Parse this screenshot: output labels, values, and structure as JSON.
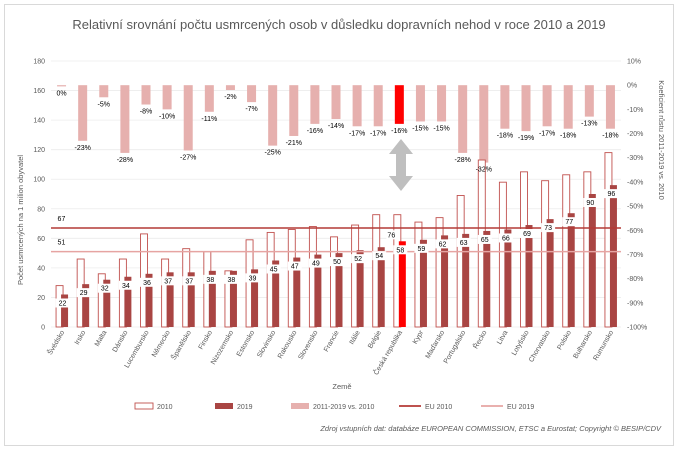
{
  "chart_data": {
    "type": "bar",
    "title": "Relativní srovnání počtu usmrcených osob v důsledku dopravních nehod v roce 2010 a 2019",
    "xlabel": "Země",
    "ylabel": "Počet usmrcených na 1 milion obyvatel",
    "y2label": "Koeficient růstu 2011-2019 vs. 2010",
    "ylim": [
      0,
      180
    ],
    "yticks": [
      0,
      20,
      40,
      60,
      80,
      100,
      120,
      140,
      160,
      180
    ],
    "y2ticks": [
      "10%",
      "0%",
      "-10%",
      "-20%",
      "-30%",
      "-40%",
      "-50%",
      "-60%",
      "-70%",
      "-80%",
      "-90%",
      "-100%"
    ],
    "y2lim": [
      -100,
      10
    ],
    "categories": [
      "Švédsko",
      "Irsko",
      "Malta",
      "Dánsko",
      "Lucembursko",
      "Německo",
      "Španělsko",
      "Finsko",
      "Nizozemsko",
      "Estonsko",
      "Slovinsko",
      "Rakousko",
      "Slovensko",
      "Francie",
      "Itálie",
      "Belgie",
      "Česká republika",
      "Kypr",
      "Maďarsko",
      "Portugalsko",
      "Řecko",
      "Litva",
      "Lotyšsko",
      "Chorvatsko",
      "Polsko",
      "Bulharsko",
      "Rumunsko"
    ],
    "series": [
      {
        "name": "2010",
        "values": [
          28,
          46,
          36,
          46,
          63,
          46,
          53,
          51,
          38,
          59,
          64,
          66,
          68,
          61,
          69,
          76,
          76,
          71,
          74,
          89,
          113,
          98,
          105,
          99,
          103,
          105,
          118
        ]
      },
      {
        "name": "2019",
        "values": [
          22,
          29,
          32,
          34,
          36,
          37,
          37,
          38,
          38,
          39,
          45,
          47,
          49,
          50,
          52,
          54,
          58,
          59,
          62,
          63,
          65,
          66,
          69,
          73,
          77,
          90,
          96
        ]
      },
      {
        "name": "2011-2019 vs. 2010",
        "values": [
          0,
          -23,
          -5,
          -28,
          -8,
          -10,
          -27,
          -11,
          -2,
          -7,
          -25,
          -21,
          -16,
          -14,
          -17,
          -17,
          -16,
          -15,
          -15,
          -28,
          -32,
          -18,
          -19,
          -17,
          -18,
          -13,
          -18
        ]
      }
    ],
    "pct_labels": [
      "0%",
      "-23%",
      "-5%",
      "-28%",
      "-8%",
      "-10%",
      "-27%",
      "-11%",
      "-2%",
      "-7%",
      "-25%",
      "-21%",
      "-16%",
      "-14%",
      "-17%",
      "-17%",
      "-16%",
      "-15%",
      "-15%",
      "-28%",
      "-32%",
      "-18%",
      "-19%",
      "-17%",
      "-18%",
      "-13%",
      "-18%"
    ],
    "eu_2010": 67,
    "eu_2019": 51,
    "eu_2010_label": "67",
    "eu_2019_label": "51",
    "highlight_label": "76",
    "highlight_category": "Česká republika",
    "legend": [
      "2010",
      "2019",
      "2011-2019 vs. 2010",
      "EU 2010",
      "EU 2019"
    ],
    "legend_position": "bottom",
    "colors": {
      "bar2010": "#c0504d",
      "bar2019": "#a94543",
      "pct": "#e6b0ae",
      "highlight": "#ff0000",
      "eu2010": "#b43a36",
      "eu2019": "#e6a4a2"
    },
    "source": "Zdroj vstupních dat: databáze EUROPEAN COMMISSION, ETSC a Eurostat; Copyright © BESIP/CDV"
  }
}
